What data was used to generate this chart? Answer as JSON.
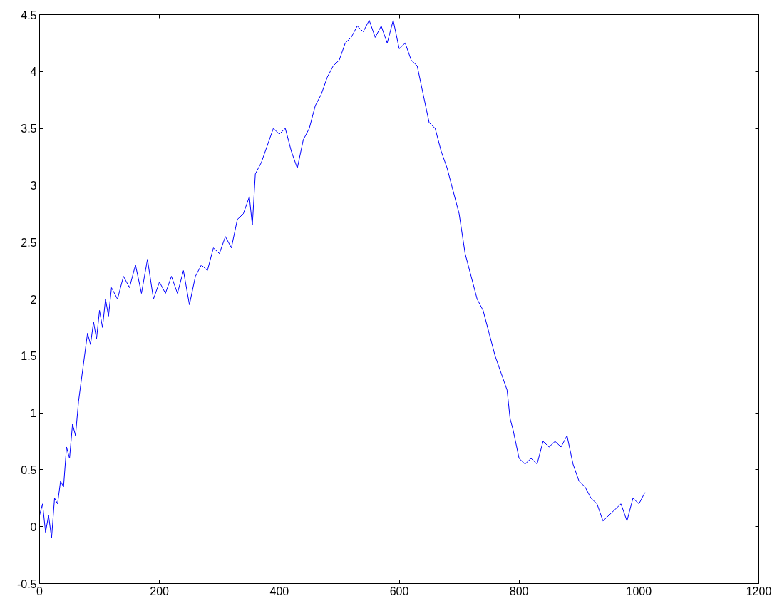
{
  "chart_data": {
    "type": "line",
    "x": [
      0,
      5,
      10,
      15,
      20,
      25,
      30,
      35,
      40,
      45,
      50,
      55,
      60,
      65,
      70,
      75,
      80,
      85,
      90,
      95,
      100,
      105,
      110,
      115,
      120,
      130,
      140,
      150,
      160,
      170,
      180,
      190,
      200,
      210,
      220,
      230,
      240,
      250,
      260,
      270,
      280,
      290,
      300,
      310,
      320,
      330,
      340,
      350,
      355,
      360,
      370,
      380,
      390,
      400,
      410,
      420,
      430,
      440,
      450,
      460,
      470,
      480,
      490,
      500,
      510,
      520,
      530,
      540,
      550,
      560,
      570,
      580,
      590,
      600,
      610,
      620,
      630,
      640,
      650,
      660,
      670,
      680,
      690,
      700,
      710,
      720,
      730,
      740,
      750,
      760,
      770,
      780,
      785,
      790,
      800,
      810,
      820,
      830,
      840,
      850,
      860,
      870,
      880,
      890,
      900,
      910,
      920,
      930,
      940,
      950,
      960,
      970,
      980,
      990,
      1000,
      1010
    ],
    "series": [
      {
        "color": "#0000ff",
        "values": [
          0.1,
          0.2,
          -0.05,
          0.1,
          -0.1,
          0.25,
          0.2,
          0.4,
          0.35,
          0.7,
          0.6,
          0.9,
          0.8,
          1.1,
          1.3,
          1.5,
          1.7,
          1.6,
          1.8,
          1.65,
          1.9,
          1.75,
          2.0,
          1.85,
          2.1,
          2.0,
          2.2,
          2.1,
          2.3,
          2.05,
          2.35,
          2.0,
          2.15,
          2.05,
          2.2,
          2.05,
          2.25,
          1.95,
          2.2,
          2.3,
          2.25,
          2.45,
          2.4,
          2.55,
          2.45,
          2.7,
          2.75,
          2.9,
          2.65,
          3.1,
          3.2,
          3.35,
          3.5,
          3.45,
          3.5,
          3.3,
          3.15,
          3.4,
          3.5,
          3.7,
          3.8,
          3.95,
          4.05,
          4.1,
          4.25,
          4.3,
          4.4,
          4.35,
          4.45,
          4.3,
          4.4,
          4.25,
          4.45,
          4.2,
          4.25,
          4.1,
          4.05,
          3.8,
          3.55,
          3.5,
          3.3,
          3.15,
          2.95,
          2.75,
          2.4,
          2.2,
          2.0,
          1.9,
          1.7,
          1.5,
          1.35,
          1.2,
          0.95,
          0.85,
          0.6,
          0.55,
          0.6,
          0.55,
          0.75,
          0.7,
          0.75,
          0.7,
          0.8,
          0.55,
          0.4,
          0.35,
          0.25,
          0.2,
          0.05,
          0.1,
          0.15,
          0.2,
          0.05,
          0.25,
          0.2,
          0.3
        ]
      }
    ],
    "xlim": [
      0,
      1200
    ],
    "ylim": [
      -0.5,
      4.5
    ],
    "xticks": [
      0,
      200,
      400,
      600,
      800,
      1000,
      1200
    ],
    "yticks": [
      -0.5,
      0,
      0.5,
      1,
      1.5,
      2,
      2.5,
      3,
      3.5,
      4,
      4.5
    ],
    "grid": false
  }
}
